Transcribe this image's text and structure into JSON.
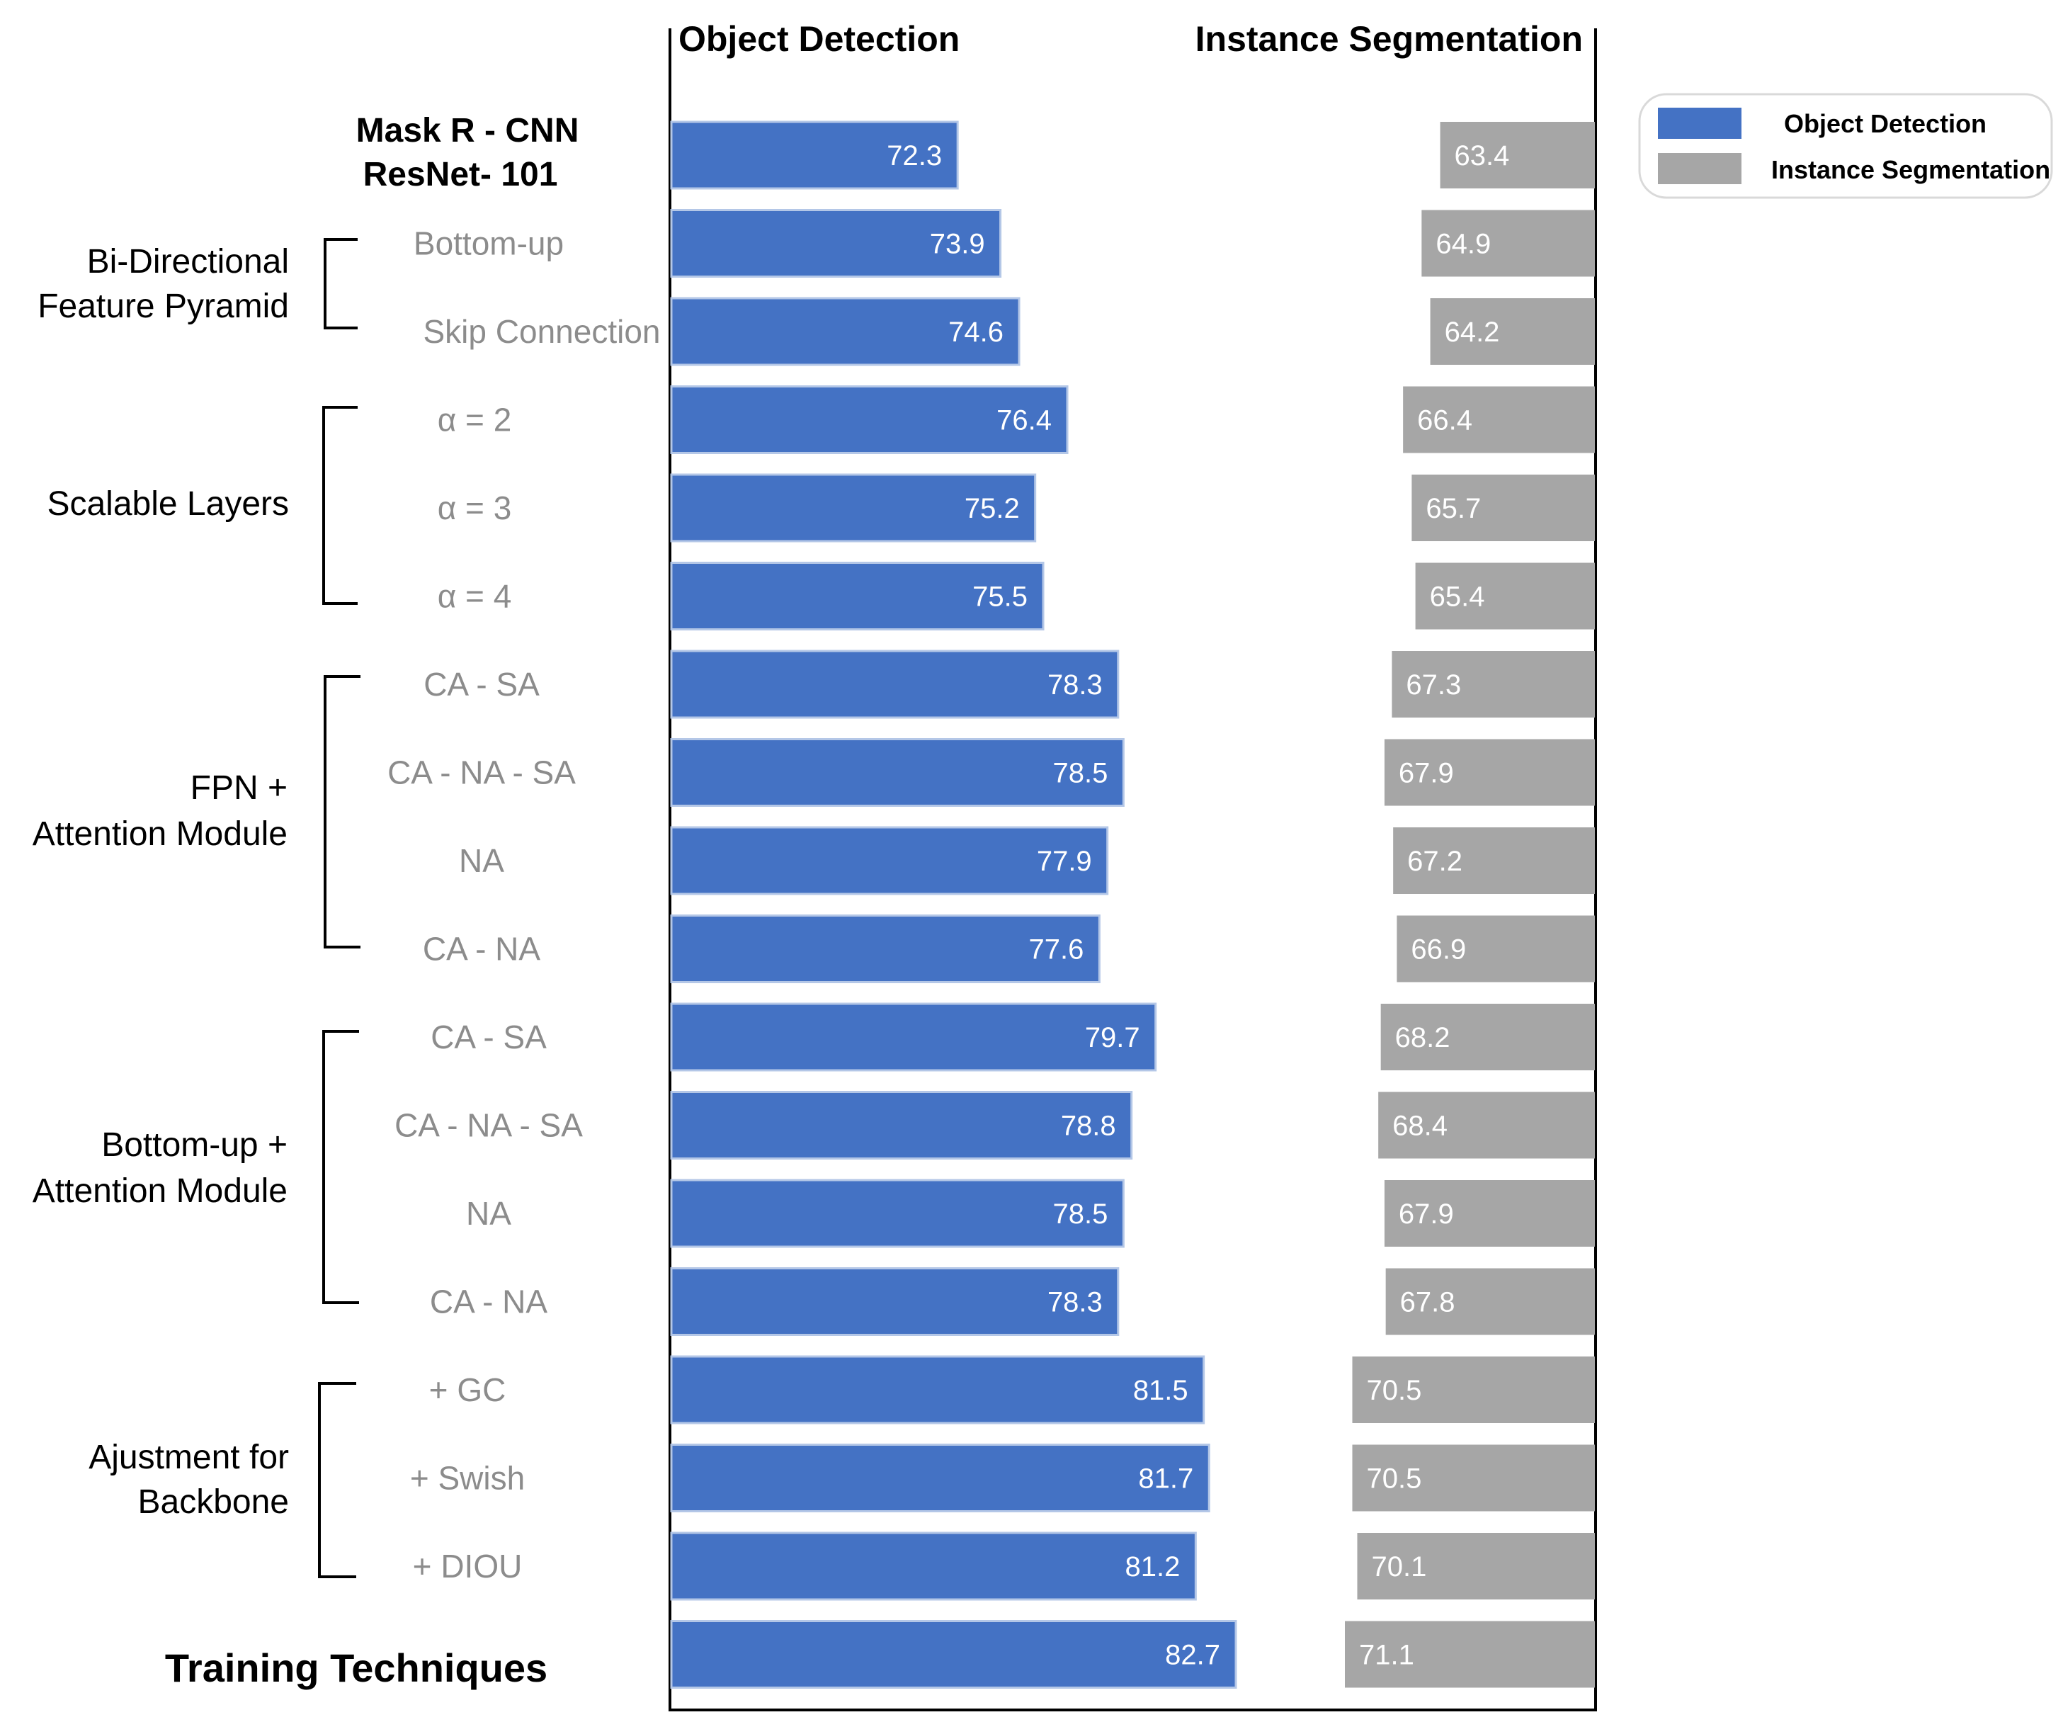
{
  "chart_data": {
    "type": "bar",
    "headers": {
      "left": "Object Detection",
      "right": "Instance Segmentation"
    },
    "baseline": {
      "line1": "Mask R - CNN",
      "line2": "ResNet- 101"
    },
    "final_label": "Training  Techniques",
    "categories": [
      "Mask R - CNN ResNet- 101",
      "Bottom-up",
      "Skip Connection",
      "α = 2",
      "α = 3",
      "α = 4",
      "CA - SA",
      "CA - NA - SA",
      "NA",
      "CA - NA",
      "CA - SA",
      "CA - NA - SA",
      "NA",
      "CA - NA",
      "+ GC",
      "+ Swish",
      "+ DIOU",
      "Training  Techniques"
    ],
    "row_labels": [
      "",
      "Bottom-up",
      "Skip Connection",
      "α = 2",
      "α = 3",
      "α = 4",
      "CA - SA",
      "CA - NA - SA",
      "NA",
      "CA - NA",
      "CA - SA",
      "CA - NA - SA",
      "NA",
      "CA - NA",
      "+ GC",
      "+ Swish",
      "+ DIOU",
      ""
    ],
    "groups": [
      {
        "line1": "Bi-Directional",
        "line2": "Feature Pyramid"
      },
      {
        "line1": "Scalable Layers",
        "line2": ""
      },
      {
        "line1": "FPN +",
        "line2": "Attention Module"
      },
      {
        "line1": "Bottom-up +",
        "line2": "Attention Module"
      },
      {
        "line1": "Ajustment for",
        "line2": "Backbone"
      }
    ],
    "series": [
      {
        "name": "Object Detection",
        "color": "#4472c4",
        "values": [
          72.3,
          73.9,
          74.6,
          76.4,
          75.2,
          75.5,
          78.3,
          78.5,
          77.9,
          77.6,
          79.7,
          78.8,
          78.5,
          78.3,
          81.5,
          81.7,
          81.2,
          82.7
        ]
      },
      {
        "name": "Instance Segmentation",
        "color": "#a6a6a6",
        "values": [
          63.4,
          64.9,
          64.2,
          66.4,
          65.7,
          65.4,
          67.3,
          67.9,
          67.2,
          66.9,
          68.2,
          68.4,
          67.9,
          67.8,
          70.5,
          70.5,
          70.1,
          71.1
        ]
      }
    ],
    "od_range": [
      61.6,
      82.7
    ],
    "is_range": [
      50.9,
      71.1
    ],
    "legend": {
      "position": "top-right",
      "items": [
        {
          "label": "Object Detection",
          "color": "#4472c4"
        },
        {
          "label": "Instance Segmentation",
          "color": "#a6a6a6"
        }
      ]
    }
  }
}
